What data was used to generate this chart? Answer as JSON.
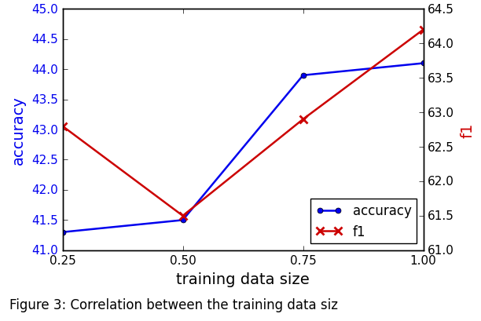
{
  "x": [
    0.25,
    0.5,
    0.75,
    1.0
  ],
  "accuracy": [
    41.3,
    41.5,
    43.9,
    44.1
  ],
  "f1": [
    62.8,
    61.5,
    62.9,
    64.2
  ],
  "accuracy_color": "#0000ee",
  "f1_color": "#cc0000",
  "xlabel": "training data size",
  "ylabel_left": "accuracy",
  "ylabel_right": "f1",
  "ylim_left": [
    41.0,
    45.0
  ],
  "ylim_right": [
    61.0,
    64.5
  ],
  "yticks_left": [
    41.0,
    41.5,
    42.0,
    42.5,
    43.0,
    43.5,
    44.0,
    44.5,
    45.0
  ],
  "yticks_right": [
    61.0,
    61.5,
    62.0,
    62.5,
    63.0,
    63.5,
    64.0,
    64.5
  ],
  "xticks": [
    0.25,
    0.5,
    0.75,
    1.0
  ],
  "legend_labels": [
    "accuracy",
    "f1"
  ],
  "legend_loc": "lower right",
  "label_fontsize": 14,
  "tick_fontsize": 11,
  "legend_fontsize": 12,
  "caption": "Figure 3: Correlation between the training data siz",
  "caption_fontsize": 12,
  "figure_width": 6.12,
  "figure_height": 4.1,
  "dpi": 100
}
